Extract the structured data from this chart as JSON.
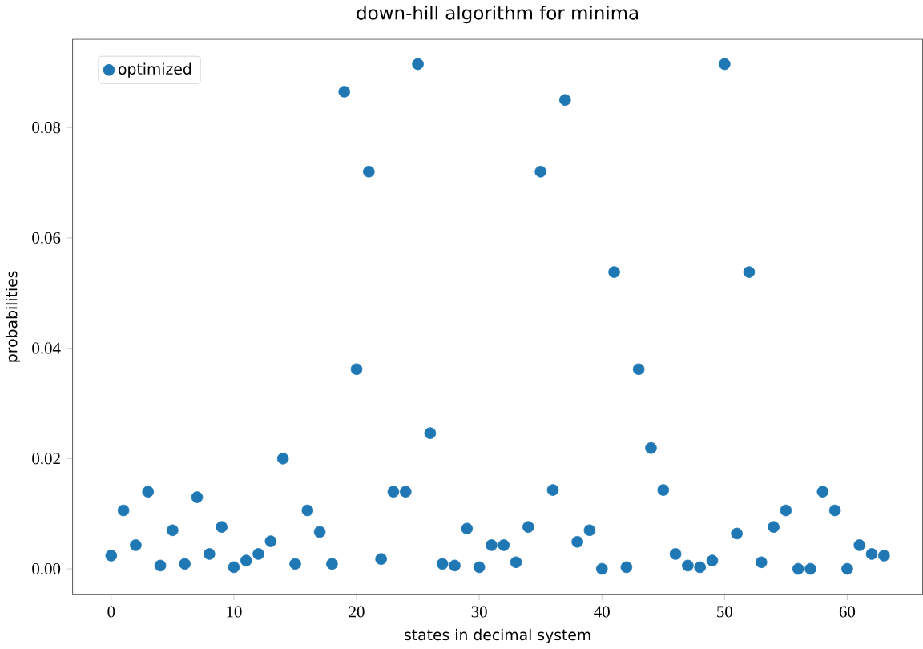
{
  "chart_data": {
    "type": "scatter",
    "title": "down-hill algorithm for minima",
    "xlabel": "states in decimal system",
    "ylabel": "probabilities",
    "x": [
      0,
      1,
      2,
      3,
      4,
      5,
      6,
      7,
      8,
      9,
      10,
      11,
      12,
      13,
      14,
      15,
      16,
      17,
      18,
      19,
      20,
      21,
      22,
      23,
      24,
      25,
      26,
      27,
      28,
      29,
      30,
      31,
      32,
      33,
      34,
      35,
      36,
      37,
      38,
      39,
      40,
      41,
      42,
      43,
      44,
      45,
      46,
      47,
      48,
      49,
      50,
      51,
      52,
      53,
      54,
      55,
      56,
      57,
      58,
      59,
      60,
      61,
      62,
      63
    ],
    "series": [
      {
        "name": "optimized",
        "color": "#1f77b4",
        "values": [
          0.0024,
          0.0106,
          0.0043,
          0.014,
          0.0006,
          0.007,
          0.0009,
          0.013,
          0.0027,
          0.0076,
          0.0003,
          0.0015,
          0.0027,
          0.005,
          0.02,
          0.0009,
          0.0106,
          0.0067,
          0.0009,
          0.0865,
          0.0362,
          0.072,
          0.0018,
          0.014,
          0.014,
          0.0915,
          0.0246,
          0.0009,
          0.0006,
          0.0073,
          0.0003,
          0.0043,
          0.0043,
          0.0012,
          0.0076,
          0.072,
          0.0143,
          0.085,
          0.0049,
          0.007,
          0.0,
          0.0538,
          0.0003,
          0.0362,
          0.0219,
          0.0143,
          0.0027,
          0.0006,
          0.0003,
          0.0015,
          0.0915,
          0.0064,
          0.0538,
          0.0012,
          0.0076,
          0.0106,
          0.0,
          0.0,
          0.014,
          0.0106,
          0.0,
          0.0043,
          0.0027,
          0.0024
        ]
      }
    ],
    "xlim": [
      -3.15,
      66.15
    ],
    "ylim": [
      -0.0046,
      0.096
    ],
    "xticks": [
      0,
      10,
      20,
      30,
      40,
      50,
      60
    ],
    "yticks": [
      {
        "value": 0,
        "label": "0.00"
      },
      {
        "value": 0.02,
        "label": "0.02"
      },
      {
        "value": 0.04,
        "label": "0.04"
      },
      {
        "value": 0.06,
        "label": "0.06"
      },
      {
        "value": 0.08,
        "label": "0.08"
      }
    ],
    "legend": "top left",
    "marker": "circle",
    "grid": false
  }
}
